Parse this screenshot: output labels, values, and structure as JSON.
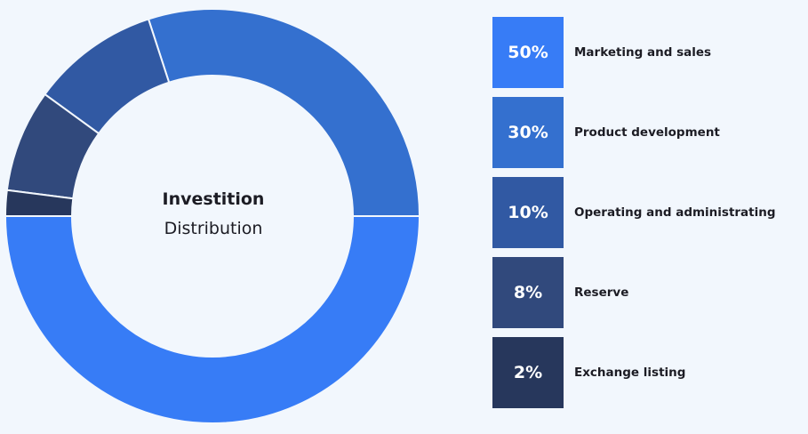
{
  "chart_data": {
    "type": "pie",
    "title": "Investition",
    "subtitle": "Distribution",
    "slices": [
      {
        "label": "Marketing and sales",
        "value": 50,
        "display": "50%",
        "color": "#377cf6"
      },
      {
        "label": "Product development",
        "value": 30,
        "display": "30%",
        "color": "#3470cf"
      },
      {
        "label": "Operating and administrating",
        "value": 10,
        "display": "10%",
        "color": "#3159a3"
      },
      {
        "label": "Reserve",
        "value": 8,
        "display": "8%",
        "color": "#31497c"
      },
      {
        "label": "Exchange listing",
        "value": 2,
        "display": "2%",
        "color": "#27375c"
      }
    ],
    "legend_position": "right"
  }
}
